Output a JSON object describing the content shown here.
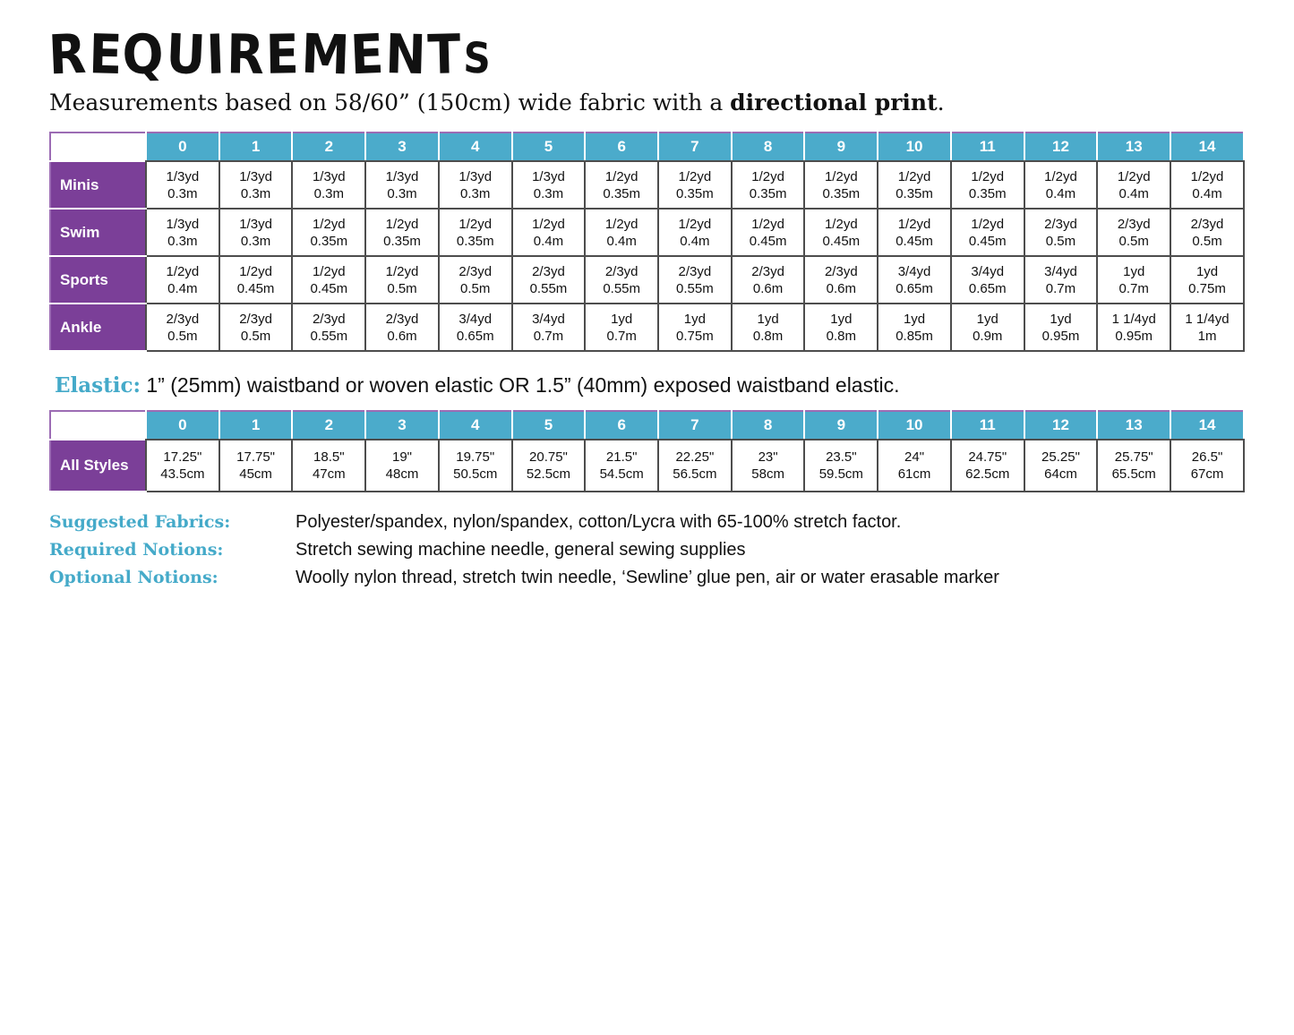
{
  "page": {
    "title": "REQUIREMENTS",
    "subtitle_prefix": "Measurements based on 58/60” (150cm) wide fabric with a ",
    "subtitle_bold": "directional print",
    "subtitle_suffix": "."
  },
  "colors": {
    "header_teal": "#4babcb",
    "label_purple": "#7b3f98",
    "table_border_purple": "#9c6cb4",
    "accent_teal_text": "#45aac9"
  },
  "fabric_table": {
    "sizes": [
      "0",
      "1",
      "2",
      "3",
      "4",
      "5",
      "6",
      "7",
      "8",
      "9",
      "10",
      "11",
      "12",
      "13",
      "14"
    ],
    "rows": [
      {
        "label": "Minis",
        "cells": [
          [
            "1/3yd",
            "0.3m"
          ],
          [
            "1/3yd",
            "0.3m"
          ],
          [
            "1/3yd",
            "0.3m"
          ],
          [
            "1/3yd",
            "0.3m"
          ],
          [
            "1/3yd",
            "0.3m"
          ],
          [
            "1/3yd",
            "0.3m"
          ],
          [
            "1/2yd",
            "0.35m"
          ],
          [
            "1/2yd",
            "0.35m"
          ],
          [
            "1/2yd",
            "0.35m"
          ],
          [
            "1/2yd",
            "0.35m"
          ],
          [
            "1/2yd",
            "0.35m"
          ],
          [
            "1/2yd",
            "0.35m"
          ],
          [
            "1/2yd",
            "0.4m"
          ],
          [
            "1/2yd",
            "0.4m"
          ],
          [
            "1/2yd",
            "0.4m"
          ]
        ]
      },
      {
        "label": "Swim",
        "cells": [
          [
            "1/3yd",
            "0.3m"
          ],
          [
            "1/3yd",
            "0.3m"
          ],
          [
            "1/2yd",
            "0.35m"
          ],
          [
            "1/2yd",
            "0.35m"
          ],
          [
            "1/2yd",
            "0.35m"
          ],
          [
            "1/2yd",
            "0.4m"
          ],
          [
            "1/2yd",
            "0.4m"
          ],
          [
            "1/2yd",
            "0.4m"
          ],
          [
            "1/2yd",
            "0.45m"
          ],
          [
            "1/2yd",
            "0.45m"
          ],
          [
            "1/2yd",
            "0.45m"
          ],
          [
            "1/2yd",
            "0.45m"
          ],
          [
            "2/3yd",
            "0.5m"
          ],
          [
            "2/3yd",
            "0.5m"
          ],
          [
            "2/3yd",
            "0.5m"
          ]
        ]
      },
      {
        "label": "Sports",
        "cells": [
          [
            "1/2yd",
            "0.4m"
          ],
          [
            "1/2yd",
            "0.45m"
          ],
          [
            "1/2yd",
            "0.45m"
          ],
          [
            "1/2yd",
            "0.5m"
          ],
          [
            "2/3yd",
            "0.5m"
          ],
          [
            "2/3yd",
            "0.55m"
          ],
          [
            "2/3yd",
            "0.55m"
          ],
          [
            "2/3yd",
            "0.55m"
          ],
          [
            "2/3yd",
            "0.6m"
          ],
          [
            "2/3yd",
            "0.6m"
          ],
          [
            "3/4yd",
            "0.65m"
          ],
          [
            "3/4yd",
            "0.65m"
          ],
          [
            "3/4yd",
            "0.7m"
          ],
          [
            "1yd",
            "0.7m"
          ],
          [
            "1yd",
            "0.75m"
          ]
        ]
      },
      {
        "label": "Ankle",
        "cells": [
          [
            "2/3yd",
            "0.5m"
          ],
          [
            "2/3yd",
            "0.5m"
          ],
          [
            "2/3yd",
            "0.55m"
          ],
          [
            "2/3yd",
            "0.6m"
          ],
          [
            "3/4yd",
            "0.65m"
          ],
          [
            "3/4yd",
            "0.7m"
          ],
          [
            "1yd",
            "0.7m"
          ],
          [
            "1yd",
            "0.75m"
          ],
          [
            "1yd",
            "0.8m"
          ],
          [
            "1yd",
            "0.8m"
          ],
          [
            "1yd",
            "0.85m"
          ],
          [
            "1yd",
            "0.9m"
          ],
          [
            "1yd",
            "0.95m"
          ],
          [
            "1 1/4yd",
            "0.95m"
          ],
          [
            "1 1/4yd",
            "1m"
          ]
        ]
      }
    ]
  },
  "elastic": {
    "label": "Elastic:",
    "text": "1” (25mm) waistband or woven elastic OR 1.5” (40mm) exposed waistband elastic."
  },
  "elastic_table": {
    "sizes": [
      "0",
      "1",
      "2",
      "3",
      "4",
      "5",
      "6",
      "7",
      "8",
      "9",
      "10",
      "11",
      "12",
      "13",
      "14"
    ],
    "rows": [
      {
        "label": "All Styles",
        "cells": [
          [
            "17.25\"",
            "43.5cm"
          ],
          [
            "17.75\"",
            "45cm"
          ],
          [
            "18.5\"",
            "47cm"
          ],
          [
            "19\"",
            "48cm"
          ],
          [
            "19.75\"",
            "50.5cm"
          ],
          [
            "20.75\"",
            "52.5cm"
          ],
          [
            "21.5\"",
            "54.5cm"
          ],
          [
            "22.25\"",
            "56.5cm"
          ],
          [
            "23\"",
            "58cm"
          ],
          [
            "23.5\"",
            "59.5cm"
          ],
          [
            "24\"",
            "61cm"
          ],
          [
            "24.75\"",
            "62.5cm"
          ],
          [
            "25.25\"",
            "64cm"
          ],
          [
            "25.75\"",
            "65.5cm"
          ],
          [
            "26.5\"",
            "67cm"
          ]
        ]
      }
    ]
  },
  "notes": [
    {
      "label": "Suggested Fabrics:",
      "text": "Polyester/spandex, nylon/spandex, cotton/Lycra with 65-100% stretch factor."
    },
    {
      "label": "Required Notions:",
      "text": "Stretch sewing machine needle, general sewing supplies"
    },
    {
      "label": "Optional Notions:",
      "text": "Woolly nylon thread, stretch twin needle, ‘Sewline’ glue pen, air or water erasable marker"
    }
  ]
}
